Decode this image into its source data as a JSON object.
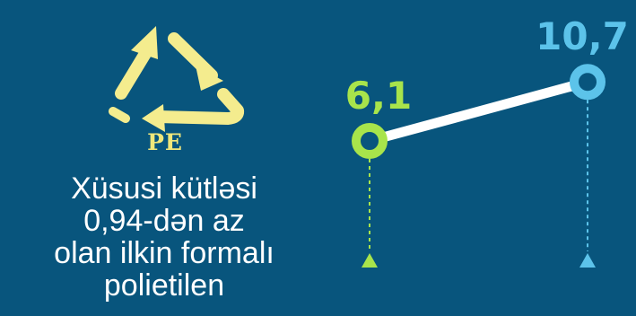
{
  "recycle_symbol": {
    "icon": "recycle-triangle-icon",
    "code": "PE",
    "color": "#f4ec8e"
  },
  "description": {
    "lines": [
      "Xüsusi kütləsi",
      "0,94-dən az",
      "olan ilkin formalı",
      "polietilen"
    ]
  },
  "chart_data": {
    "type": "line",
    "points": [
      {
        "label": "6,1",
        "value": 6.1,
        "color": "#a8e44b"
      },
      {
        "label": "10,7",
        "value": 10.7,
        "color": "#5cc3ea"
      }
    ],
    "line_color": "#ffffff",
    "background": "#08557d"
  }
}
